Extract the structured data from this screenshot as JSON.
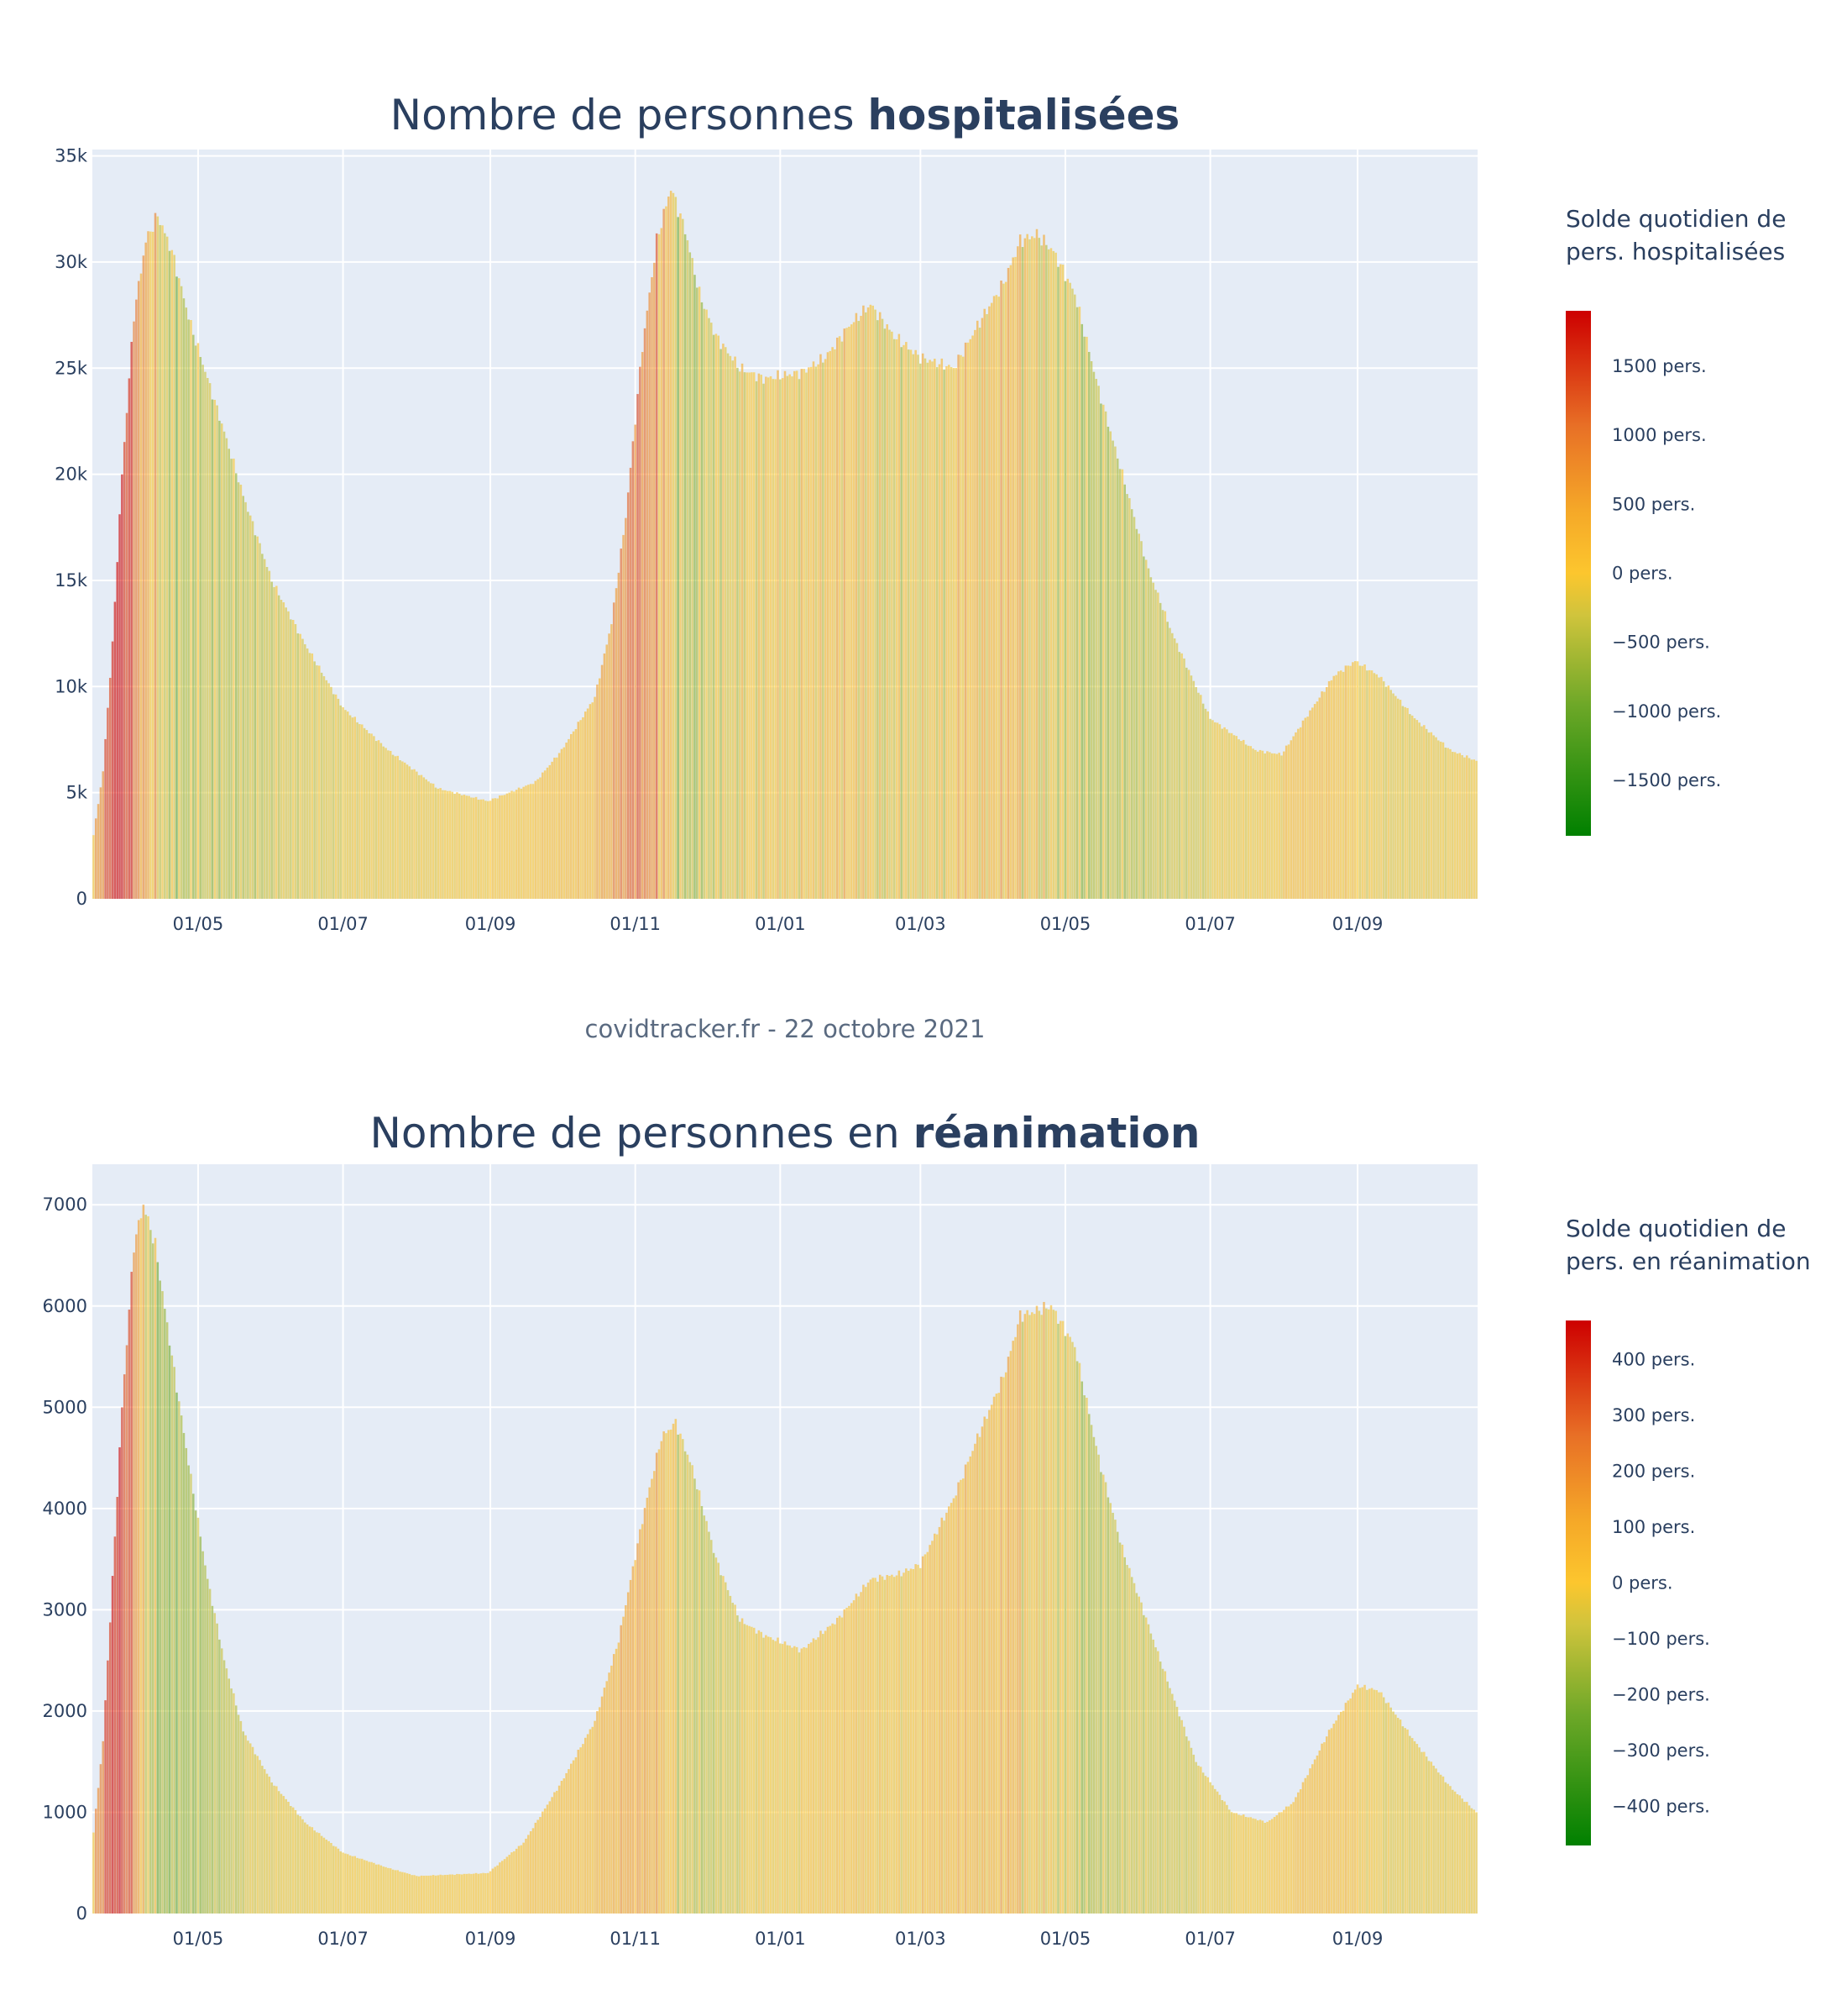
{
  "credit": "covidtracker.fr - 22 octobre 2021",
  "chart_data": [
    {
      "type": "bar",
      "title_plain": "Nombre de personnes ",
      "title_bold": "hospitalisées",
      "ylim": [
        0,
        35300
      ],
      "yticks": [
        0,
        5000,
        10000,
        15000,
        20000,
        25000,
        30000,
        35000
      ],
      "ytick_labels": [
        "0",
        "5k",
        "10k",
        "15k",
        "20k",
        "25k",
        "30k",
        "35k"
      ],
      "xaxis": {
        "start": "2020-03-18",
        "end": "2021-10-21"
      },
      "xticks": [
        "2020-05-01",
        "2020-07-01",
        "2020-09-01",
        "2020-11-01",
        "2021-01-01",
        "2021-03-01",
        "2021-05-01",
        "2021-07-01",
        "2021-09-01"
      ],
      "xtick_labels": [
        "01/05",
        "01/07",
        "01/09",
        "01/11",
        "01/01",
        "01/03",
        "01/05",
        "01/07",
        "01/09"
      ],
      "grid": true,
      "anchors": [
        [
          "2020-03-18",
          3000
        ],
        [
          "2020-03-22",
          6000
        ],
        [
          "2020-03-26",
          12000
        ],
        [
          "2020-03-30",
          20000
        ],
        [
          "2020-04-04",
          27500
        ],
        [
          "2020-04-09",
          31000
        ],
        [
          "2020-04-14",
          32200
        ],
        [
          "2020-04-20",
          30500
        ],
        [
          "2020-04-28",
          27000
        ],
        [
          "2020-05-05",
          24500
        ],
        [
          "2020-05-12",
          22000
        ],
        [
          "2020-05-20",
          19000
        ],
        [
          "2020-06-01",
          15000
        ],
        [
          "2020-06-15",
          12000
        ],
        [
          "2020-07-01",
          9000
        ],
        [
          "2020-07-20",
          7000
        ],
        [
          "2020-08-10",
          5200
        ],
        [
          "2020-08-31",
          4600
        ],
        [
          "2020-09-20",
          5500
        ],
        [
          "2020-10-01",
          7000
        ],
        [
          "2020-10-15",
          9500
        ],
        [
          "2020-10-22",
          13000
        ],
        [
          "2020-10-28",
          18000
        ],
        [
          "2020-11-04",
          26000
        ],
        [
          "2020-11-10",
          31000
        ],
        [
          "2020-11-16",
          33500
        ],
        [
          "2020-11-22",
          31500
        ],
        [
          "2020-11-28",
          28500
        ],
        [
          "2020-12-05",
          26500
        ],
        [
          "2020-12-15",
          25000
        ],
        [
          "2020-12-25",
          24500
        ],
        [
          "2021-01-10",
          24800
        ],
        [
          "2021-01-20",
          25500
        ],
        [
          "2021-01-30",
          27000
        ],
        [
          "2021-02-08",
          28000
        ],
        [
          "2021-02-18",
          26500
        ],
        [
          "2021-03-01",
          25500
        ],
        [
          "2021-03-15",
          25000
        ],
        [
          "2021-03-25",
          27000
        ],
        [
          "2021-04-05",
          29000
        ],
        [
          "2021-04-12",
          31000
        ],
        [
          "2021-04-19",
          31300
        ],
        [
          "2021-04-26",
          30500
        ],
        [
          "2021-05-05",
          28500
        ],
        [
          "2021-05-15",
          24000
        ],
        [
          "2021-05-25",
          20000
        ],
        [
          "2021-06-05",
          15500
        ],
        [
          "2021-06-15",
          12500
        ],
        [
          "2021-07-01",
          8500
        ],
        [
          "2021-07-20",
          7000
        ],
        [
          "2021-07-31",
          6800
        ],
        [
          "2021-08-10",
          8500
        ],
        [
          "2021-08-22",
          10500
        ],
        [
          "2021-08-31",
          11200
        ],
        [
          "2021-09-10",
          10500
        ],
        [
          "2021-09-25",
          8500
        ],
        [
          "2021-10-10",
          7000
        ],
        [
          "2021-10-21",
          6500
        ]
      ],
      "colorbar": {
        "title_line1": "Solde quotidien de",
        "title_line2": "pers. hospitalisées",
        "range": [
          -1900,
          1900
        ],
        "tick_values": [
          1500,
          1000,
          500,
          0,
          -500,
          -1000,
          -1500
        ],
        "tick_labels": [
          "1500 pers.",
          "1000 pers.",
          "500 pers.",
          "0 pers.",
          "−500 pers.",
          "−1000 pers.",
          "−1500 pers."
        ]
      }
    },
    {
      "type": "bar",
      "title_plain": "Nombre de personnes en ",
      "title_bold": "réanimation",
      "ylim": [
        0,
        7400
      ],
      "yticks": [
        0,
        1000,
        2000,
        3000,
        4000,
        5000,
        6000,
        7000
      ],
      "ytick_labels": [
        "0",
        "1000",
        "2000",
        "3000",
        "4000",
        "5000",
        "6000",
        "7000"
      ],
      "xaxis": {
        "start": "2020-03-18",
        "end": "2021-10-21"
      },
      "xticks": [
        "2020-05-01",
        "2020-07-01",
        "2020-09-01",
        "2020-11-01",
        "2021-01-01",
        "2021-03-01",
        "2021-05-01",
        "2021-07-01",
        "2021-09-01"
      ],
      "xtick_labels": [
        "01/05",
        "01/07",
        "01/09",
        "01/11",
        "01/01",
        "01/03",
        "01/05",
        "01/07",
        "01/09"
      ],
      "grid": true,
      "anchors": [
        [
          "2020-03-18",
          800
        ],
        [
          "2020-03-22",
          1700
        ],
        [
          "2020-03-26",
          3300
        ],
        [
          "2020-03-30",
          5000
        ],
        [
          "2020-04-04",
          6600
        ],
        [
          "2020-04-08",
          7000
        ],
        [
          "2020-04-13",
          6600
        ],
        [
          "2020-04-20",
          5500
        ],
        [
          "2020-04-28",
          4300
        ],
        [
          "2020-05-05",
          3300
        ],
        [
          "2020-05-12",
          2500
        ],
        [
          "2020-05-20",
          1800
        ],
        [
          "2020-06-01",
          1300
        ],
        [
          "2020-06-15",
          900
        ],
        [
          "2020-07-01",
          600
        ],
        [
          "2020-07-20",
          450
        ],
        [
          "2020-08-01",
          370
        ],
        [
          "2020-08-31",
          400
        ],
        [
          "2020-09-15",
          700
        ],
        [
          "2020-10-01",
          1300
        ],
        [
          "2020-10-15",
          1900
        ],
        [
          "2020-10-25",
          2700
        ],
        [
          "2020-11-05",
          4000
        ],
        [
          "2020-11-12",
          4700
        ],
        [
          "2020-11-18",
          4850
        ],
        [
          "2020-11-25",
          4400
        ],
        [
          "2020-12-05",
          3500
        ],
        [
          "2020-12-15",
          2900
        ],
        [
          "2020-12-25",
          2750
        ],
        [
          "2021-01-10",
          2600
        ],
        [
          "2021-01-25",
          2900
        ],
        [
          "2021-02-08",
          3300
        ],
        [
          "2021-02-20",
          3350
        ],
        [
          "2021-03-01",
          3450
        ],
        [
          "2021-03-15",
          4100
        ],
        [
          "2021-03-25",
          4700
        ],
        [
          "2021-04-05",
          5300
        ],
        [
          "2021-04-12",
          5900
        ],
        [
          "2021-04-25",
          6000
        ],
        [
          "2021-05-05",
          5600
        ],
        [
          "2021-05-15",
          4500
        ],
        [
          "2021-05-25",
          3600
        ],
        [
          "2021-06-10",
          2500
        ],
        [
          "2021-06-25",
          1500
        ],
        [
          "2021-07-10",
          1000
        ],
        [
          "2021-07-25",
          900
        ],
        [
          "2021-08-05",
          1100
        ],
        [
          "2021-08-20",
          1800
        ],
        [
          "2021-09-01",
          2250
        ],
        [
          "2021-09-10",
          2200
        ],
        [
          "2021-09-25",
          1700
        ],
        [
          "2021-10-10",
          1250
        ],
        [
          "2021-10-21",
          1000
        ]
      ],
      "colorbar": {
        "title_line1": "Solde quotidien de",
        "title_line2": "pers. en réanimation",
        "range": [
          -470,
          470
        ],
        "tick_values": [
          400,
          300,
          200,
          100,
          0,
          -100,
          -200,
          -300,
          -400
        ],
        "tick_labels": [
          "400 pers.",
          "300 pers.",
          "200 pers.",
          "100 pers.",
          "0 pers.",
          "−100 pers.",
          "−200 pers.",
          "−300 pers.",
          "−400 pers."
        ]
      }
    }
  ]
}
